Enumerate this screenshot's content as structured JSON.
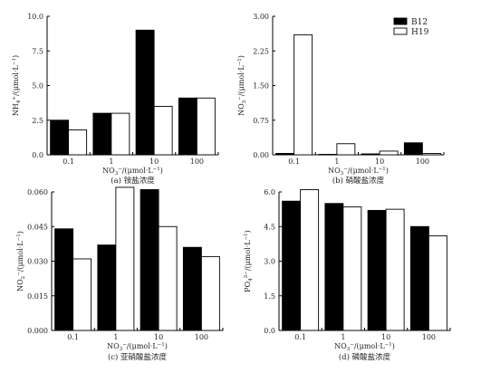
{
  "chart_data": [
    {
      "type": "bar",
      "categories": [
        "0.1",
        "1",
        "10",
        "100"
      ],
      "series": [
        {
          "name": "B12",
          "values": [
            2.5,
            3.0,
            9.0,
            4.1
          ]
        },
        {
          "name": "H19",
          "values": [
            1.8,
            3.0,
            3.5,
            4.1
          ]
        }
      ],
      "ylim": [
        0,
        10
      ],
      "yticks": [
        "0.0",
        "2.5",
        "5.0",
        "7.5",
        "10.0"
      ],
      "ylabel": "NH",
      "ylabel_sub": "4",
      "ylabel_sup": "+",
      "ylabel_unit": "/(μmol·L",
      "ylabel_unit_sup": "−1",
      "xlabel": "NO",
      "xlabel_sub": "3",
      "xlabel_sup": "−",
      "xlabel_unit": "/(μmol·L",
      "xlabel_unit_sup": "−1",
      "caption": "(a) 铵盐浓度"
    },
    {
      "type": "bar",
      "categories": [
        "0.1",
        "1",
        "10",
        "100"
      ],
      "series": [
        {
          "name": "B12",
          "values": [
            0.03,
            0.01,
            0.02,
            0.26
          ]
        },
        {
          "name": "H19",
          "values": [
            2.6,
            0.24,
            0.08,
            0.03
          ]
        }
      ],
      "ylim": [
        0,
        3.0
      ],
      "yticks": [
        "0.00",
        "0.75",
        "1.50",
        "2.25",
        "3.00"
      ],
      "ylabel": "NO",
      "ylabel_sub": "3",
      "ylabel_sup": "−",
      "ylabel_unit": "/(μmol·L",
      "ylabel_unit_sup": "−1",
      "xlabel": "NO",
      "xlabel_sub": "3",
      "xlabel_sup": "−",
      "xlabel_unit": "/(μmol·L",
      "xlabel_unit_sup": "−1",
      "caption": "(b) 硝酸盐浓度",
      "legend": {
        "placement": "top-right",
        "items": [
          "B12",
          "H19"
        ]
      }
    },
    {
      "type": "bar",
      "categories": [
        "0.1",
        "1",
        "10",
        "100"
      ],
      "series": [
        {
          "name": "B12",
          "values": [
            0.044,
            0.037,
            0.061,
            0.036
          ]
        },
        {
          "name": "H19",
          "values": [
            0.031,
            0.062,
            0.045,
            0.032
          ]
        }
      ],
      "ylim": [
        0,
        0.06
      ],
      "yticks": [
        "0.000",
        "0.015",
        "0.030",
        "0.045",
        "0.060"
      ],
      "ylabel": "NO",
      "ylabel_sub": "2",
      "ylabel_sup": "−",
      "ylabel_unit": "/(μmol·L",
      "ylabel_unit_sup": "−1",
      "xlabel": "NO",
      "xlabel_sub": "3",
      "xlabel_sup": "−",
      "xlabel_unit": "/(μmol·L",
      "xlabel_unit_sup": "−1",
      "caption": "(c) 亚硝酸盐浓度"
    },
    {
      "type": "bar",
      "categories": [
        "0.1",
        "1",
        "10",
        "100"
      ],
      "series": [
        {
          "name": "B12",
          "values": [
            5.6,
            5.5,
            5.2,
            4.5
          ]
        },
        {
          "name": "H19",
          "values": [
            6.1,
            5.35,
            5.25,
            4.1
          ]
        }
      ],
      "ylim": [
        0,
        6.0
      ],
      "yticks": [
        "0.0",
        "1.5",
        "3.0",
        "4.5",
        "6.0"
      ],
      "ylabel": "PO",
      "ylabel_sub": "4",
      "ylabel_sup": "3−",
      "ylabel_unit": "/(μmol·L",
      "ylabel_unit_sup": "−1",
      "xlabel": "NO",
      "xlabel_sub": "3",
      "xlabel_sup": "−",
      "xlabel_unit": "/(μmol·L",
      "xlabel_unit_sup": "−1",
      "caption": "(d) 磷酸盐浓度"
    }
  ],
  "colors": {
    "B12": "#000000",
    "H19": "#ffffff",
    "axis": "#000000",
    "outline": "#000000"
  }
}
